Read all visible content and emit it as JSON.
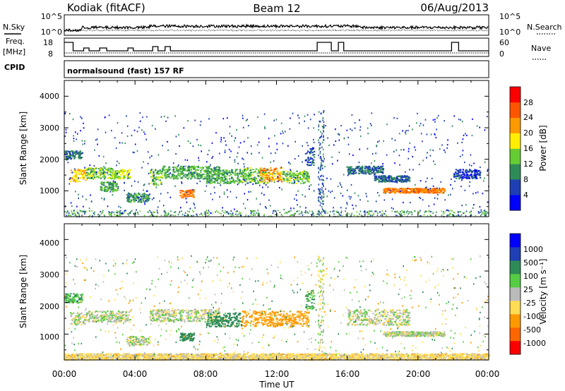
{
  "header": {
    "station": "Kodiak (fitACF)",
    "beam": "Beam 12",
    "date": "06/Aug/2013"
  },
  "noise_panel": {
    "left_label": "N.Sky",
    "right_label": "N.Search",
    "left_ticks": [
      "10^5",
      "10^0"
    ],
    "right_ticks": [
      "10^5",
      "10^0"
    ]
  },
  "freq_panel": {
    "left_label_line1": "Freq.",
    "left_label_line2": "[MHz]",
    "right_label": "Nave",
    "left_ticks": [
      "18",
      "8"
    ],
    "right_ticks": [
      "60",
      "0"
    ]
  },
  "cpid_panel": {
    "label": "CPID",
    "text": "normalsound (fast) 157 RF"
  },
  "colors": {
    "power": [
      "#0000ff",
      "#1f3fb4",
      "#2e8b57",
      "#66cc33",
      "#ffee00",
      "#ff9900",
      "#ff5500",
      "#ff0000"
    ],
    "velocity": [
      "#ff0000",
      "#ff6600",
      "#ff9900",
      "#ffdd55",
      "#bbbbbb",
      "#55cc44",
      "#2e8b57",
      "#1f3fb4",
      "#0000ff"
    ]
  },
  "chart_data": [
    {
      "type": "heatmap",
      "title": "Power",
      "ylabel": "Slant Range [km]",
      "xlabel": "",
      "x_ticks": [
        "00:00",
        "04:00",
        "08:00",
        "12:00",
        "16:00",
        "20:00",
        "00:00"
      ],
      "y_ticks": [
        "1000",
        "2000",
        "3000",
        "4000"
      ],
      "xlim_hours": [
        0,
        24
      ],
      "ylim_km": [
        180,
        4500
      ],
      "colorbar_label": "Power [dB]",
      "colorbar_ticks": [
        "4",
        "8",
        "12",
        "16",
        "20",
        "24",
        "28"
      ],
      "colorbar_range": [
        0,
        32
      ],
      "bands": [
        {
          "t0": 0.0,
          "t1": 1.0,
          "r0": 2000,
          "r1": 2300,
          "value": 8
        },
        {
          "t0": 0.3,
          "t1": 1.2,
          "r0": 1300,
          "r1": 1700,
          "value": 20
        },
        {
          "t0": 1.2,
          "t1": 2.7,
          "r0": 1400,
          "r1": 1750,
          "value": 14
        },
        {
          "t0": 2.7,
          "t1": 3.7,
          "r0": 1400,
          "r1": 1700,
          "value": 16
        },
        {
          "t0": 2.0,
          "t1": 3.0,
          "r0": 1000,
          "r1": 1300,
          "value": 12
        },
        {
          "t0": 3.5,
          "t1": 4.8,
          "r0": 650,
          "r1": 950,
          "value": 10
        },
        {
          "t0": 4.8,
          "t1": 5.5,
          "r0": 1200,
          "r1": 1700,
          "value": 14
        },
        {
          "t0": 5.5,
          "t1": 8.8,
          "r0": 1400,
          "r1": 1800,
          "value": 12
        },
        {
          "t0": 6.5,
          "t1": 7.3,
          "r0": 800,
          "r1": 1050,
          "value": 24
        },
        {
          "t0": 8.0,
          "t1": 10.0,
          "r0": 1250,
          "r1": 1700,
          "value": 12
        },
        {
          "t0": 10.0,
          "t1": 11.5,
          "r0": 1250,
          "r1": 1750,
          "value": 14
        },
        {
          "t0": 11.0,
          "t1": 12.3,
          "r0": 1300,
          "r1": 1750,
          "value": 22
        },
        {
          "t0": 12.3,
          "t1": 13.8,
          "r0": 1250,
          "r1": 1650,
          "value": 14
        },
        {
          "t0": 13.6,
          "t1": 14.1,
          "r0": 1800,
          "r1": 2400,
          "value": 6
        },
        {
          "t0": 16.0,
          "t1": 18.0,
          "r0": 1550,
          "r1": 1800,
          "value": 8
        },
        {
          "t0": 17.5,
          "t1": 19.5,
          "r0": 1300,
          "r1": 1500,
          "value": 8
        },
        {
          "t0": 18.0,
          "t1": 21.5,
          "r0": 950,
          "r1": 1100,
          "value": 24
        },
        {
          "t0": 22.0,
          "t1": 23.5,
          "r0": 1400,
          "r1": 1700,
          "value": 6
        }
      ]
    },
    {
      "type": "heatmap",
      "title": "Velocity",
      "ylabel": "Slant Range [km]",
      "xlabel": "Time UT",
      "x_ticks": [
        "00:00",
        "04:00",
        "08:00",
        "12:00",
        "16:00",
        "20:00",
        "00:00"
      ],
      "y_ticks": [
        "1000",
        "2000",
        "3000",
        "4000"
      ],
      "xlim_hours": [
        0,
        24
      ],
      "ylim_km": [
        180,
        4500
      ],
      "colorbar_label": "Velocity [m s⁻¹]",
      "colorbar_ticks": [
        "-1000",
        "-500",
        "-100",
        "-25",
        "25",
        "100",
        "500",
        "1000"
      ],
      "bands": [
        {
          "t0": 0.0,
          "t1": 1.0,
          "r0": 2000,
          "r1": 2300,
          "value": 100
        },
        {
          "t0": 0.3,
          "t1": 1.2,
          "r0": 1300,
          "r1": 1700,
          "value": 0
        },
        {
          "t0": 1.2,
          "t1": 3.7,
          "r0": 1400,
          "r1": 1750,
          "value": 0
        },
        {
          "t0": 3.5,
          "t1": 4.8,
          "r0": 650,
          "r1": 950,
          "value": 0
        },
        {
          "t0": 4.8,
          "t1": 8.8,
          "r0": 1400,
          "r1": 1800,
          "value": 0
        },
        {
          "t0": 6.5,
          "t1": 7.3,
          "r0": 800,
          "r1": 1050,
          "value": 300
        },
        {
          "t0": 8.0,
          "t1": 10.0,
          "r0": 1250,
          "r1": 1700,
          "value": 300
        },
        {
          "t0": 10.0,
          "t1": 13.8,
          "r0": 1250,
          "r1": 1750,
          "value": -150
        },
        {
          "t0": 13.6,
          "t1": 14.1,
          "r0": 1800,
          "r1": 2400,
          "value": 100
        },
        {
          "t0": 16.0,
          "t1": 19.5,
          "r0": 1300,
          "r1": 1800,
          "value": 0
        },
        {
          "t0": 18.0,
          "t1": 21.5,
          "r0": 950,
          "r1": 1100,
          "value": 0
        },
        {
          "t0": 0.0,
          "t1": 24.0,
          "r0": 200,
          "r1": 400,
          "value": -50
        }
      ]
    }
  ]
}
